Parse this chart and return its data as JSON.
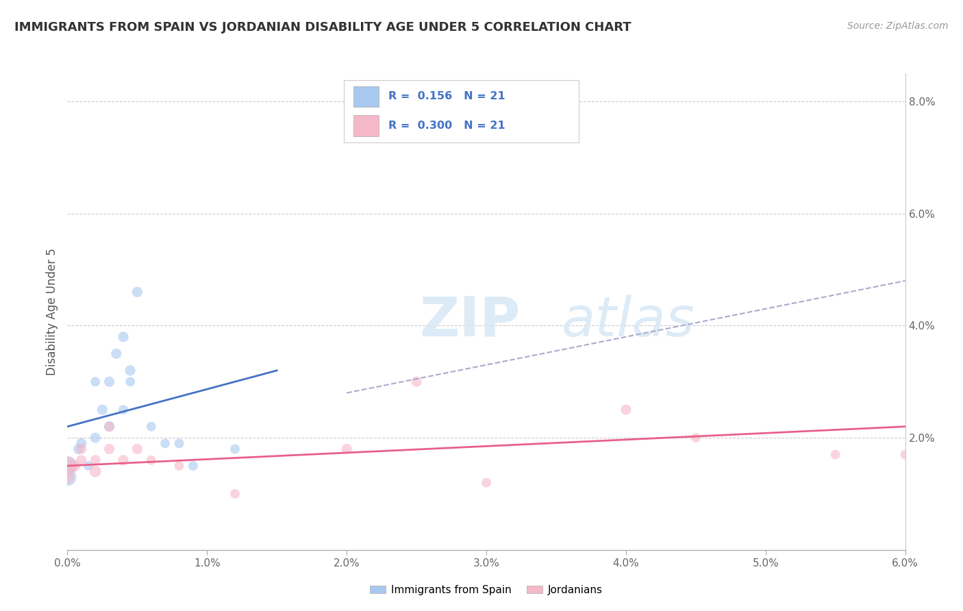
{
  "title": "IMMIGRANTS FROM SPAIN VS JORDANIAN DISABILITY AGE UNDER 5 CORRELATION CHART",
  "source": "Source: ZipAtlas.com",
  "ylabel": "Disability Age Under 5",
  "xmin": 0.0,
  "xmax": 0.06,
  "ymin": 0.0,
  "ymax": 0.085,
  "yticks_right": [
    0.0,
    0.02,
    0.04,
    0.06,
    0.08
  ],
  "ytick_labels_right": [
    "",
    "2.0%",
    "4.0%",
    "6.0%",
    "8.0%"
  ],
  "xticks": [
    0.0,
    0.01,
    0.02,
    0.03,
    0.04,
    0.05,
    0.06
  ],
  "xtick_labels": [
    "0.0%",
    "1.0%",
    "2.0%",
    "3.0%",
    "4.0%",
    "5.0%",
    "6.0%"
  ],
  "blue_color": "#A8C8F0",
  "pink_color": "#F5B8C8",
  "blue_line_color": "#4472C4",
  "pink_line_color": "#E8608A",
  "dashed_line_color": "#AAAACC",
  "legend_r_blue": "0.156",
  "legend_n_blue": "21",
  "legend_r_pink": "0.300",
  "legend_n_pink": "21",
  "legend_label_blue": "Immigrants from Spain",
  "legend_label_pink": "Jordanians",
  "spain_x": [
    0.0008,
    0.001,
    0.0015,
    0.002,
    0.002,
    0.0025,
    0.003,
    0.003,
    0.0035,
    0.004,
    0.004,
    0.0045,
    0.0045,
    0.005,
    0.006,
    0.007,
    0.008,
    0.009,
    0.012,
    0.0,
    0.0
  ],
  "spain_y": [
    0.018,
    0.019,
    0.015,
    0.02,
    0.03,
    0.025,
    0.022,
    0.03,
    0.035,
    0.038,
    0.025,
    0.03,
    0.032,
    0.046,
    0.022,
    0.019,
    0.019,
    0.015,
    0.018,
    0.015,
    0.013
  ],
  "spain_sizes": [
    120,
    120,
    100,
    120,
    100,
    120,
    120,
    120,
    120,
    120,
    100,
    100,
    120,
    120,
    100,
    100,
    100,
    100,
    100,
    400,
    350
  ],
  "jordan_x": [
    0.0,
    0.0,
    0.0005,
    0.001,
    0.001,
    0.002,
    0.002,
    0.003,
    0.003,
    0.004,
    0.005,
    0.006,
    0.008,
    0.012,
    0.02,
    0.025,
    0.03,
    0.04,
    0.045,
    0.055,
    0.06
  ],
  "jordan_y": [
    0.015,
    0.013,
    0.015,
    0.016,
    0.018,
    0.016,
    0.014,
    0.018,
    0.022,
    0.016,
    0.018,
    0.016,
    0.015,
    0.01,
    0.018,
    0.03,
    0.012,
    0.025,
    0.02,
    0.017,
    0.017
  ],
  "jordan_sizes": [
    400,
    200,
    150,
    120,
    120,
    120,
    150,
    120,
    120,
    120,
    120,
    100,
    100,
    100,
    120,
    120,
    100,
    120,
    100,
    100,
    100
  ],
  "blue_trend_x": [
    0.0,
    0.015
  ],
  "blue_trend_y": [
    0.022,
    0.032
  ],
  "pink_trend_x": [
    0.0,
    0.06
  ],
  "pink_trend_y": [
    0.015,
    0.022
  ],
  "dashed_trend_x": [
    0.02,
    0.06
  ],
  "dashed_trend_y": [
    0.028,
    0.048
  ],
  "watermark": "ZIPatlas",
  "background_color": "#FFFFFF",
  "plot_bg_color": "#FFFFFF",
  "grid_color": "#CCCCCC"
}
